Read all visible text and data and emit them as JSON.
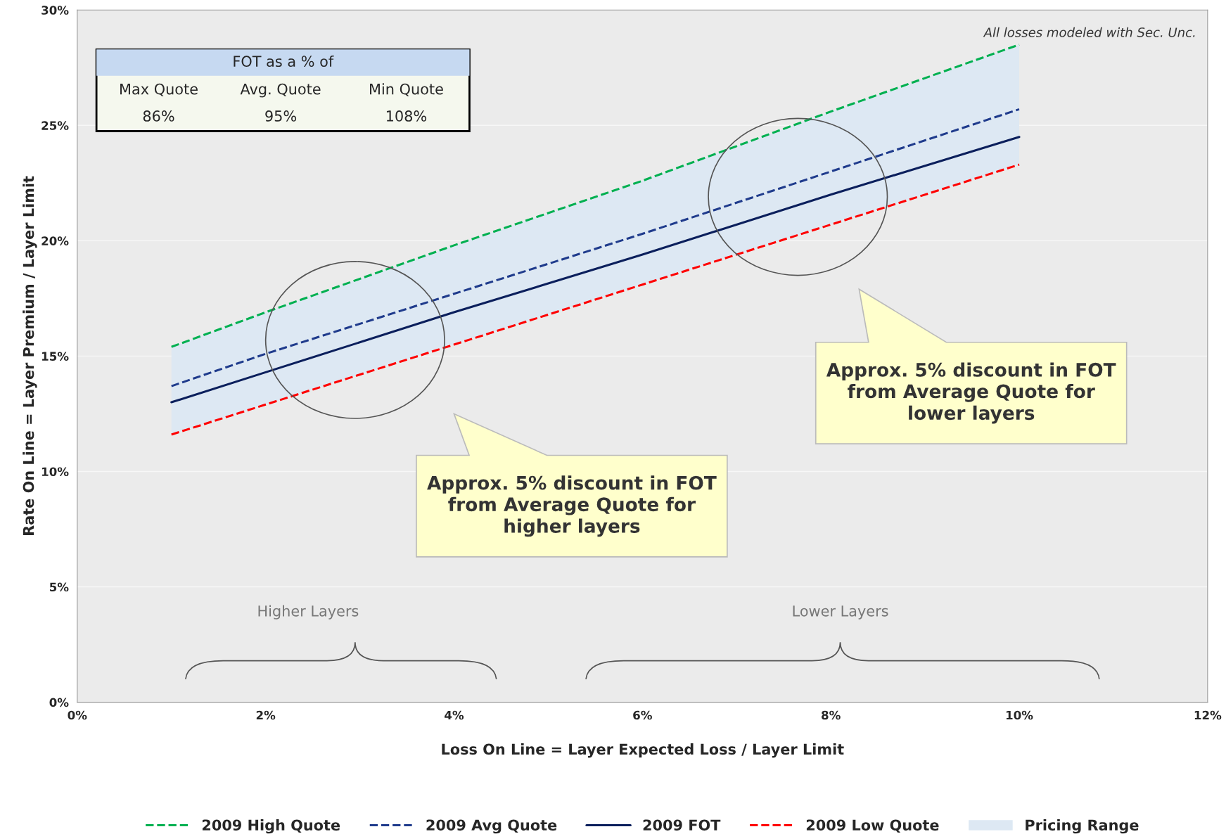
{
  "chart_data": {
    "type": "line",
    "xlabel": "Loss On Line = Layer Expected Loss / Layer Limit",
    "ylabel": "Rate On Line = Layer Premium / Layer Limit",
    "x": [
      1,
      2,
      4,
      6,
      8,
      10
    ],
    "series": [
      {
        "name": "2009 High Quote",
        "color": "#00b050",
        "line_style": "dashed",
        "values": [
          15.4,
          16.9,
          19.8,
          22.6,
          25.6,
          28.5
        ]
      },
      {
        "name": "2009 Avg Quote",
        "color": "#1f3b8c",
        "line_style": "dashed",
        "values": [
          13.7,
          15.1,
          17.7,
          20.3,
          23.0,
          25.7
        ]
      },
      {
        "name": "2009 FOT",
        "color": "#0b1f5c",
        "line_style": "solid",
        "values": [
          13.0,
          14.3,
          16.9,
          19.4,
          22.0,
          24.5
        ],
        "lower": [
          11.6,
          12.9,
          15.5,
          18.1,
          20.7,
          23.3
        ],
        "upper": [
          15.4,
          16.9,
          19.8,
          22.6,
          25.6,
          28.5
        ]
      },
      {
        "name": "2009 Low Quote",
        "color": "#ff0000",
        "line_style": "dashed",
        "values": [
          11.6,
          12.9,
          15.5,
          18.1,
          20.7,
          23.3
        ]
      }
    ],
    "xlim": [
      0,
      12
    ],
    "xticks": [
      {
        "value": 0,
        "label": "0%"
      },
      {
        "value": 2,
        "label": "2%"
      },
      {
        "value": 4,
        "label": "4%"
      },
      {
        "value": 6,
        "label": "6%"
      },
      {
        "value": 8,
        "label": "8%"
      },
      {
        "value": 10,
        "label": "10%"
      },
      {
        "value": 12,
        "label": "12%"
      }
    ],
    "ylim": [
      0,
      30
    ],
    "yticks": [
      {
        "value": 0,
        "label": "0%"
      },
      {
        "value": 5,
        "label": "5%"
      },
      {
        "value": 10,
        "label": "10%"
      },
      {
        "value": 15,
        "label": "15%"
      },
      {
        "value": 20,
        "label": "20%"
      },
      {
        "value": 25,
        "label": "25%"
      },
      {
        "value": 30,
        "label": "30%"
      }
    ],
    "grid": "y",
    "legend": "bottom",
    "marker": "none",
    "annotations": [
      "All losses modeled with Sec. Unc.",
      "FOT as a % of",
      "Max Quote",
      "Avg. Quote",
      "Min Quote",
      "86%",
      "95%",
      "108%",
      "Approx. 5% discount in FOT\nfrom Average Quote for\nhigher layers",
      "Approx. 5% discount in FOT\nfrom Average Quote for\nlower layers",
      "Higher Layers",
      "Lower Layers",
      "Pricing Range"
    ]
  }
}
